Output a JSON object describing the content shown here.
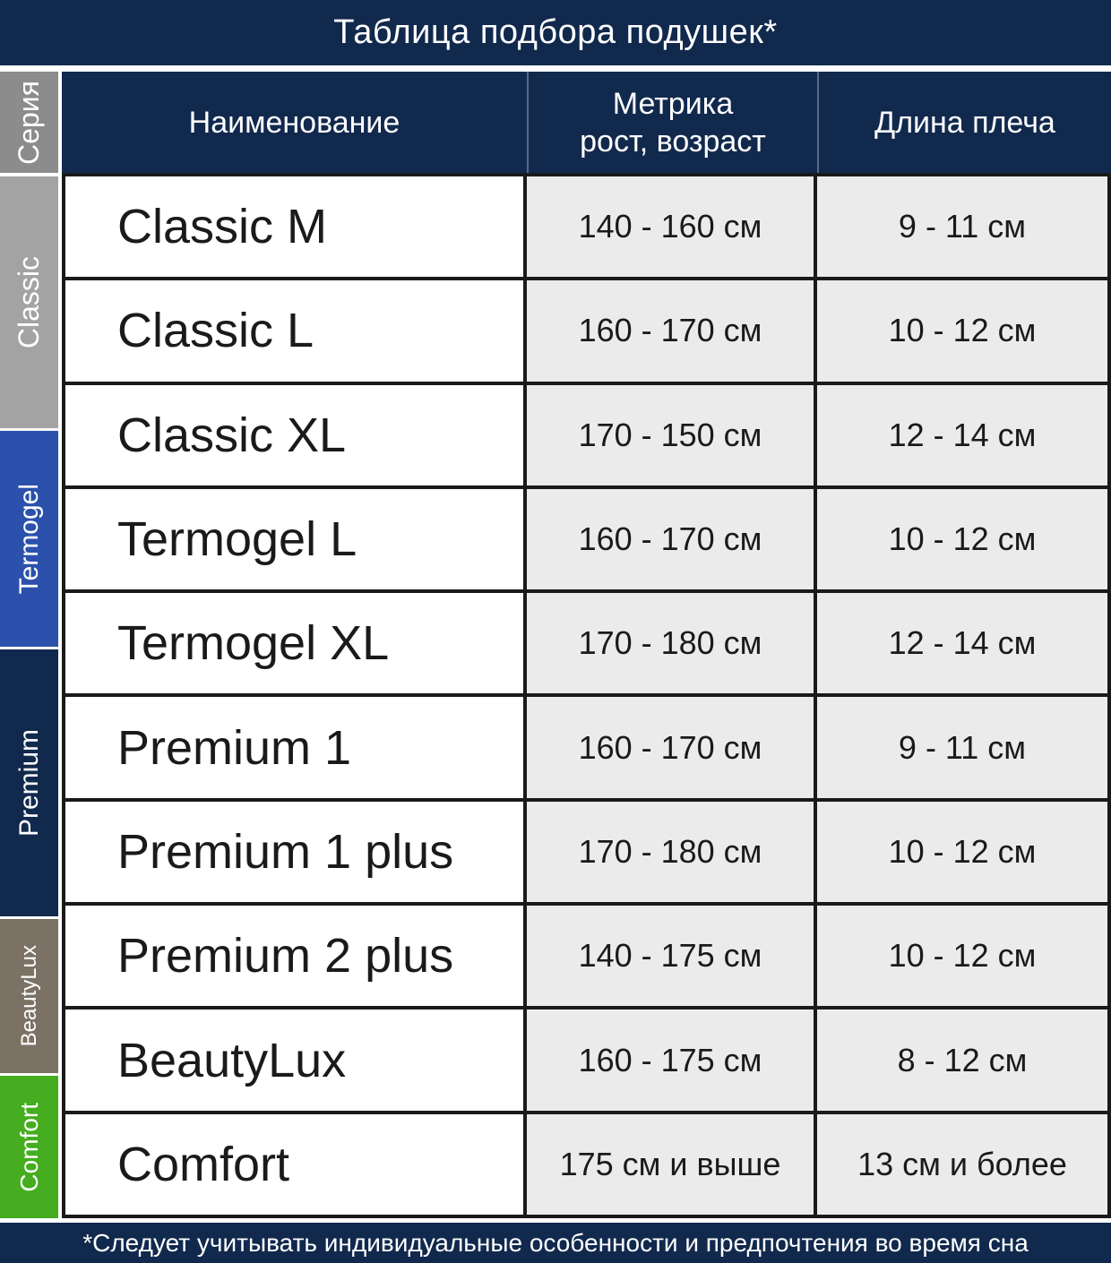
{
  "title": "Таблица подбора подушек*",
  "footnote": "*Следует учитывать индивидуальные особенности и предпочтения во время сна",
  "header": {
    "name": "Наименование",
    "metric_line1": "Метрика",
    "metric_line2": "рост, возраст",
    "shoulder": "Длина плеча"
  },
  "rail": {
    "header": {
      "label": "Серия",
      "color": "#8C8C8C"
    },
    "sections": [
      {
        "label": "Classic",
        "color": "#A3A3A3",
        "row_span": 3,
        "label_size": "fs-32"
      },
      {
        "label": "Termogel",
        "color": "#2B51AC",
        "row_span": 2,
        "label_size": "fs-30"
      },
      {
        "label": "Premium",
        "color": "#12294E",
        "row_span": 3,
        "label_size": "fs-30"
      },
      {
        "label": "BeautyLux",
        "color": "#7B7265",
        "row_span": 1,
        "label_size": "fs-24"
      },
      {
        "label": "Comfort",
        "color": "#45AD1F",
        "row_span": 1,
        "label_size": "fs-28"
      }
    ]
  },
  "rows": [
    {
      "series": "Classic",
      "name": "Classic M",
      "metric": "140 - 160 см",
      "shoulder": "9 - 11 см"
    },
    {
      "series": "Classic",
      "name": "Classic L",
      "metric": "160 - 170 см",
      "shoulder": "10 - 12 см"
    },
    {
      "series": "Classic",
      "name": "Classic XL",
      "metric": "170 - 150 см",
      "shoulder": "12 - 14 см"
    },
    {
      "series": "Termogel",
      "name": "Termogel L",
      "metric": "160 - 170 см",
      "shoulder": "10 - 12 см"
    },
    {
      "series": "Termogel",
      "name": "Termogel XL",
      "metric": "170 - 180 см",
      "shoulder": "12 - 14 см"
    },
    {
      "series": "Premium",
      "name": "Premium 1",
      "metric": "160 - 170 см",
      "shoulder": "9 - 11 см"
    },
    {
      "series": "Premium",
      "name": "Premium 1 plus",
      "metric": "170 - 180 см",
      "shoulder": "10 - 12 см"
    },
    {
      "series": "Premium",
      "name": "Premium 2 plus",
      "metric": "140 - 175 см",
      "shoulder": "10 - 12 см"
    },
    {
      "series": "BeautyLux",
      "name": "BeautyLux",
      "metric": "160 - 175 см",
      "shoulder": "8 - 12 см"
    },
    {
      "series": "Comfort",
      "name": "Comfort",
      "metric": "175 см и выше",
      "shoulder": "13 см и более"
    }
  ],
  "colors": {
    "header_bg": "#12294E",
    "footer_bg": "#12294E",
    "cell_bg": "#EBEBEB",
    "name_cell_bg": "#FFFFFF",
    "border": "#1A1A1A",
    "text": "#1A1A1A",
    "header_text": "#FFFFFF"
  },
  "chart_data": {
    "type": "table",
    "title": "Таблица подбора подушек*",
    "columns": [
      "Серия",
      "Наименование",
      "Метрика рост, возраст",
      "Длина плеча"
    ],
    "rows": [
      [
        "Classic",
        "Classic M",
        "140 - 160 см",
        "9 - 11 см"
      ],
      [
        "Classic",
        "Classic L",
        "160 - 170 см",
        "10 - 12 см"
      ],
      [
        "Classic",
        "Classic XL",
        "170 - 150 см",
        "12 - 14 см"
      ],
      [
        "Termogel",
        "Termogel L",
        "160 - 170 см",
        "10 - 12 см"
      ],
      [
        "Termogel",
        "Termogel XL",
        "170 - 180 см",
        "12 - 14 см"
      ],
      [
        "Premium",
        "Premium 1",
        "160 - 170 см",
        "9 - 11 см"
      ],
      [
        "Premium",
        "Premium 1 plus",
        "170 - 180 см",
        "10 - 12 см"
      ],
      [
        "Premium",
        "Premium 2 plus",
        "140 - 175 см",
        "10 - 12 см"
      ],
      [
        "BeautyLux",
        "BeautyLux",
        "160 - 175 см",
        "8 - 12 см"
      ],
      [
        "Comfort",
        "Comfort",
        "175 см и выше",
        "13 см и более"
      ]
    ],
    "footnote": "*Следует учитывать индивидуальные особенности и предпочтения во время сна"
  }
}
